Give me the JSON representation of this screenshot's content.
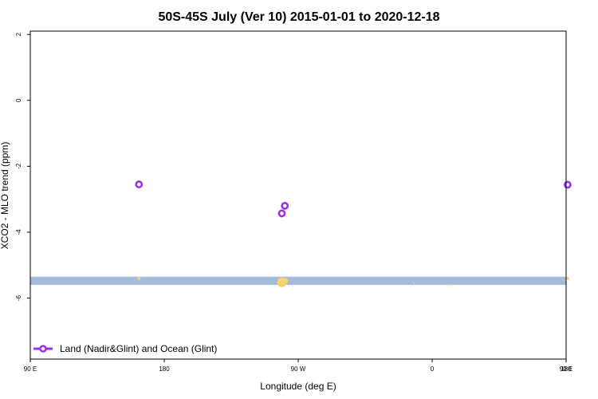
{
  "chart_data": {
    "type": "scatter",
    "title": "50S-45S July (Ver 10)   2015-01-01 to 2020-12-18",
    "xlabel": "Longitude (deg E)",
    "ylabel": "XCO2 - MLO trend (ppm)",
    "xlim": [
      90,
      450
    ],
    "ylim": [
      -7.85,
      2.1
    ],
    "x_ticks": [
      {
        "value": 90,
        "label": "90 E"
      },
      {
        "value": 180,
        "label": "180"
      },
      {
        "value": 270,
        "label": "90 W"
      },
      {
        "value": 360,
        "label": "0"
      },
      {
        "value": 450,
        "label": "90 E"
      }
    ],
    "x_ticks_far": [
      {
        "value": 450,
        "label": "180"
      }
    ],
    "y_ticks": [
      {
        "value": 2,
        "label": "2"
      },
      {
        "value": 0,
        "label": "0"
      },
      {
        "value": -2,
        "label": "-2"
      },
      {
        "value": -4,
        "label": "-4"
      },
      {
        "value": -6,
        "label": "-6"
      }
    ],
    "band": {
      "y_min": -5.6,
      "y_max": -5.35,
      "color": "#a4bbdb"
    },
    "series": [
      {
        "name": "Land (Nadir&Glint) and Ocean (Glint)",
        "color": "#9b30e8",
        "marker": "open-circle",
        "points": [
          {
            "lon": 163,
            "xco2": -2.55
          },
          {
            "lon": 259,
            "xco2": -3.43
          },
          {
            "lon": 261,
            "xco2": -3.2
          },
          {
            "lon": 451,
            "xco2": -2.56
          }
        ]
      },
      {
        "name": "",
        "color": "#f6d46b",
        "marker": "filled-circle",
        "points": [
          {
            "lon": 163,
            "xco2": -5.4,
            "size": 2
          },
          {
            "lon": 259,
            "xco2": -5.52,
            "size": 6
          },
          {
            "lon": 261,
            "xco2": -5.48,
            "size": 4
          },
          {
            "lon": 348,
            "xco2": -5.55,
            "size": 1
          },
          {
            "lon": 372,
            "xco2": -5.6,
            "size": 1
          },
          {
            "lon": 451,
            "xco2": -5.4,
            "size": 2
          }
        ]
      }
    ],
    "legend": {
      "position": "bottom-left",
      "text": "Land (Nadir&Glint) and Ocean (Glint)"
    },
    "grid": false
  }
}
